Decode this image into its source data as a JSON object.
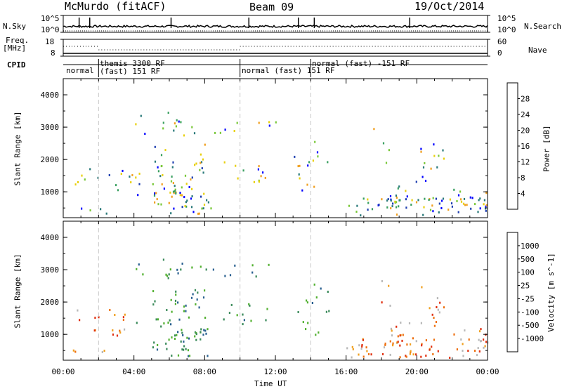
{
  "header": {
    "station": "McMurdo (fitACF)",
    "beam": "Beam 09",
    "date": "19/Oct/2014"
  },
  "strips": {
    "nsky_label": "N.Sky",
    "nsearch_label": "N.Search",
    "nsky_ticks": [
      "10^5",
      "10^0"
    ],
    "nsearch_ticks": [
      "10^5",
      "10^0"
    ],
    "freq_label": "Freq.",
    "freq_unit": "[MHz]",
    "freq_ticks": [
      "18",
      "8"
    ],
    "nave_label": "Nave",
    "nave_ticks": [
      "60",
      "0"
    ],
    "cpid_label": "CPID"
  },
  "cpid_segments": [
    {
      "start_h": 0.0,
      "lines": [
        "normal"
      ]
    },
    {
      "start_h": 2.0,
      "lines": [
        "themis 3300 RF",
        "(fast) 151 RF"
      ]
    },
    {
      "start_h": 10.0,
      "lines": [
        "normal (fast) 151 RF"
      ]
    },
    {
      "start_h": 14.0,
      "lines": [
        "normal (fast) -151 RF"
      ]
    }
  ],
  "chart_data": [
    {
      "type": "heatmap",
      "quantity": "Power",
      "ylabel": "Slant Range [km]",
      "xlabel": "Time UT",
      "xlim_hours": [
        0,
        24
      ],
      "x_ticks": [
        "00:00",
        "04:00",
        "08:00",
        "12:00",
        "16:00",
        "20:00",
        "00:00"
      ],
      "ylim": [
        200,
        4500
      ],
      "y_ticks": [
        1000,
        2000,
        3000,
        4000
      ],
      "colorbar": {
        "label": "Power [dB]",
        "ticks": [
          "28",
          "24",
          "20",
          "16",
          "12",
          "8",
          "4"
        ],
        "colors": [
          "#0000ff",
          "#1f3fb0",
          "#2a7a7a",
          "#3aa060",
          "#7ac83a",
          "#e8d010",
          "#f0a020",
          "#ee6010",
          "#e02020",
          "#ff0000"
        ]
      }
    },
    {
      "type": "heatmap",
      "quantity": "Velocity",
      "ylabel": "Slant Range [km]",
      "xlabel": "Time UT",
      "xlim_hours": [
        0,
        24
      ],
      "x_ticks": [
        "00:00",
        "04:00",
        "08:00",
        "12:00",
        "16:00",
        "20:00",
        "00:00"
      ],
      "ylim": [
        200,
        4500
      ],
      "y_ticks": [
        1000,
        2000,
        3000,
        4000
      ],
      "colorbar": {
        "label": "Velocity [m s^-1]",
        "ticks": [
          "1000",
          "500",
          "100",
          "25",
          "-25",
          "-100",
          "-500",
          "-1000"
        ],
        "colors": [
          "#1f3fb0",
          "#2a6090",
          "#3a8a5a",
          "#52b030",
          "#80d040",
          "#b8b8b8",
          "#f0a020",
          "#ee7010",
          "#e03010",
          "#ff0000"
        ]
      }
    }
  ]
}
